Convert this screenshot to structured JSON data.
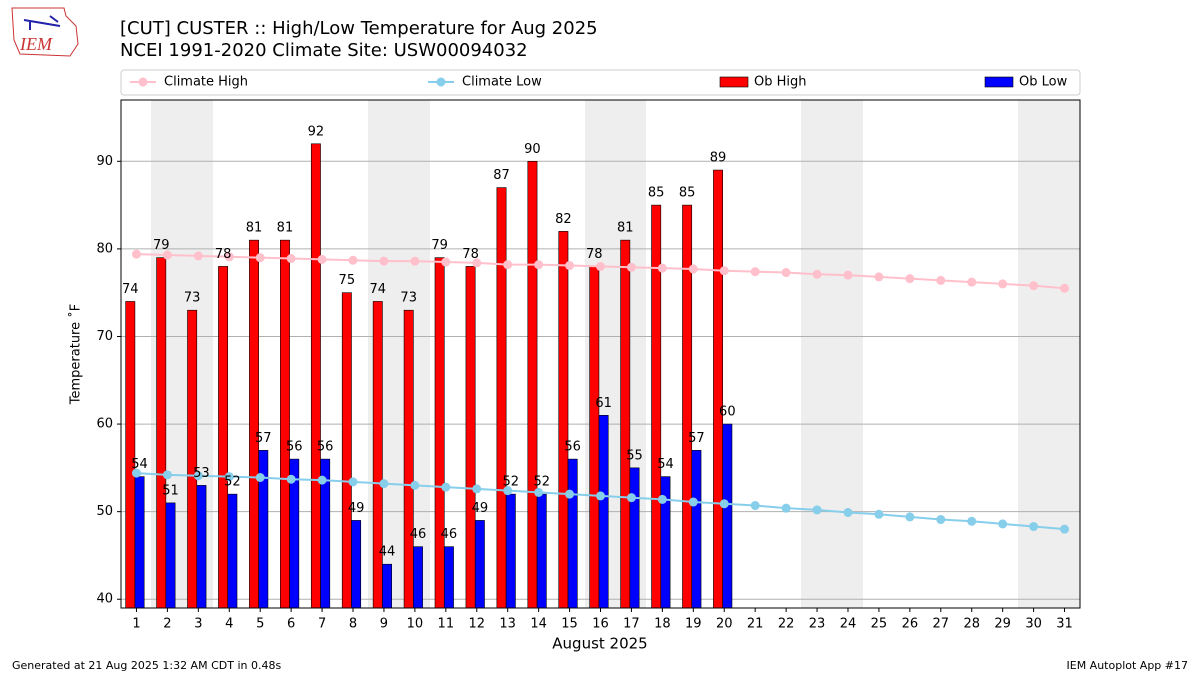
{
  "logo": "IEM",
  "chart_data": {
    "type": "bar",
    "title": "[CUT] CUSTER :: High/Low Temperature for Aug 2025",
    "subtitle": "NCEI 1991-2020 Climate Site: USW00094032",
    "xlabel": "August 2025",
    "ylabel": "Temperature ˚F",
    "x": [
      1,
      2,
      3,
      4,
      5,
      6,
      7,
      8,
      9,
      10,
      11,
      12,
      13,
      14,
      15,
      16,
      17,
      18,
      19,
      20,
      21,
      22,
      23,
      24,
      25,
      26,
      27,
      28,
      29,
      30,
      31
    ],
    "xlim": [
      0.5,
      31.5
    ],
    "xticks": [
      1,
      2,
      3,
      4,
      5,
      6,
      7,
      8,
      9,
      10,
      11,
      12,
      13,
      14,
      15,
      16,
      17,
      18,
      19,
      20,
      21,
      22,
      23,
      24,
      25,
      26,
      27,
      28,
      29,
      30,
      31
    ],
    "ylim": [
      39,
      97
    ],
    "yticks": [
      40,
      50,
      60,
      70,
      80,
      90
    ],
    "grid": true,
    "legend": "top",
    "series": [
      {
        "name": "Climate High",
        "type": "line",
        "color": "#ffc0cb",
        "values": [
          79.4,
          79.3,
          79.2,
          79.1,
          79.0,
          78.9,
          78.8,
          78.7,
          78.6,
          78.6,
          78.5,
          78.4,
          78.2,
          78.2,
          78.1,
          78.0,
          77.9,
          77.8,
          77.7,
          77.5,
          77.4,
          77.3,
          77.1,
          77.0,
          76.8,
          76.6,
          76.4,
          76.2,
          76.0,
          75.8,
          75.5
        ]
      },
      {
        "name": "Climate Low",
        "type": "line",
        "color": "#87ceeb",
        "values": [
          54.4,
          54.2,
          54.1,
          54.0,
          53.9,
          53.7,
          53.6,
          53.4,
          53.2,
          53.0,
          52.8,
          52.6,
          52.4,
          52.2,
          52.0,
          51.8,
          51.6,
          51.4,
          51.1,
          50.9,
          50.7,
          50.4,
          50.2,
          49.9,
          49.7,
          49.4,
          49.1,
          48.9,
          48.6,
          48.3,
          48.0
        ]
      },
      {
        "name": "Ob High",
        "type": "bar",
        "color": "#ff0000",
        "values": [
          74,
          79,
          73,
          78,
          81,
          81,
          92,
          75,
          74,
          73,
          79,
          78,
          87,
          90,
          82,
          78,
          81,
          85,
          85,
          89,
          null,
          null,
          null,
          null,
          null,
          null,
          null,
          null,
          null,
          null,
          null
        ]
      },
      {
        "name": "Ob Low",
        "type": "bar",
        "color": "#0000ff",
        "values": [
          54,
          51,
          53,
          52,
          57,
          56,
          56,
          49,
          44,
          46,
          46,
          49,
          52,
          52,
          56,
          61,
          55,
          54,
          57,
          60,
          null,
          null,
          null,
          null,
          null,
          null,
          null,
          null,
          null,
          null,
          null
        ]
      }
    ],
    "footer_left": "Generated at 21 Aug 2025 1:32 AM CDT in 0.48s",
    "footer_right": "IEM Autoplot App #17"
  }
}
